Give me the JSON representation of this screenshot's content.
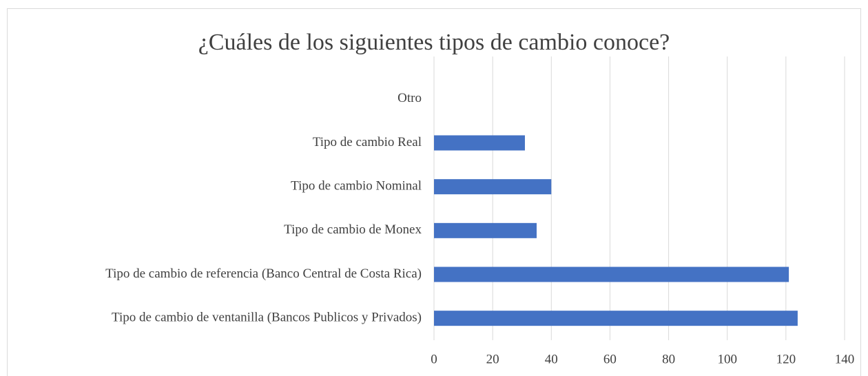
{
  "chart_data": {
    "type": "bar",
    "orientation": "horizontal",
    "title": "¿Cuáles de los siguientes tipos de cambio conoce?",
    "categories": [
      "Tipo de cambio de ventanilla (Bancos Publicos y Privados)",
      "Tipo de cambio de referencia (Banco Central de Costa Rica)",
      "Tipo de cambio de Monex",
      "Tipo de cambio Nominal",
      "Tipo de cambio Real",
      "Otro"
    ],
    "values": [
      124,
      121,
      35,
      40,
      31,
      0
    ],
    "color": "#4472c4",
    "xlim": [
      0,
      140
    ],
    "xticks": [
      0,
      20,
      40,
      60,
      80,
      100,
      120,
      140
    ],
    "grid": true
  }
}
